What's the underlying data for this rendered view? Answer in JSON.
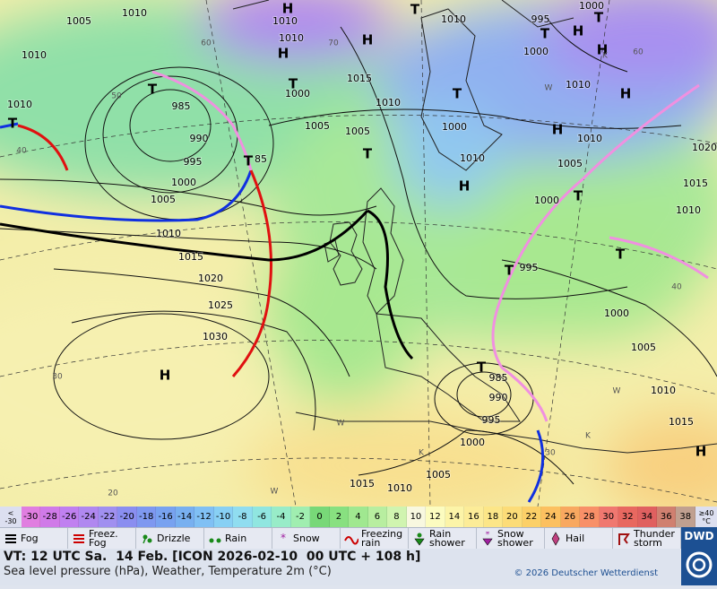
{
  "map": {
    "pressure_labels": [
      "1005",
      "1010",
      "1010",
      "1010",
      "T",
      "985",
      "990",
      "995",
      "1000",
      "1005",
      "T",
      "85",
      "1010",
      "1015",
      "1020",
      "1025",
      "1030",
      "H",
      "T",
      "1010",
      "H",
      "1010",
      "H",
      "H",
      "T",
      "T",
      "1000",
      "1015",
      "1005",
      "1005",
      "1010",
      "T",
      "1010",
      "995",
      "T",
      "1000",
      "1000",
      "T",
      "H",
      "H",
      "1010",
      "T",
      "1000",
      "1010",
      "H",
      "H",
      "1010",
      "1005",
      "T",
      "1000",
      "H",
      "1020",
      "1015",
      "1010",
      "T",
      "T",
      "995",
      "1000",
      "1005",
      "1010",
      "1015",
      "H",
      "T",
      "985",
      "990",
      "995",
      "1000",
      "1005",
      "1010",
      "1015"
    ],
    "grid_labels": [
      "60",
      "50",
      "40",
      "70",
      "60",
      "40",
      "30",
      "20",
      "30",
      "W",
      "W",
      "K",
      "K",
      "W",
      "W",
      "K"
    ]
  },
  "scale": {
    "low_label": [
      "<",
      "-30"
    ],
    "high_label": [
      "≥40",
      "°C"
    ],
    "labels": [
      "-30",
      "-28",
      "-26",
      "-24",
      "-22",
      "-20",
      "-18",
      "-16",
      "-14",
      "-12",
      "-10",
      "-8",
      "-6",
      "-4",
      "-2",
      "0",
      "2",
      "4",
      "6",
      "8",
      "10",
      "12",
      "14",
      "16",
      "18",
      "20",
      "22",
      "24",
      "26",
      "28",
      "30",
      "32",
      "34",
      "36",
      "38"
    ],
    "colors": [
      "#e07ee0",
      "#d07ae8",
      "#c080f0",
      "#b088f0",
      "#a090f0",
      "#8a8ef0",
      "#7e98f0",
      "#78a2f0",
      "#78b0f0",
      "#80c0f4",
      "#88d0f4",
      "#90ddf0",
      "#90e6e0",
      "#98ecc8",
      "#a0eeb0",
      "#78d878",
      "#88e080",
      "#a0e890",
      "#b8eea0",
      "#d0f4b0",
      "#f8f8e0",
      "#fcfcc0",
      "#fcf4a8",
      "#fcec98",
      "#fce688",
      "#fcdc78",
      "#fcd068",
      "#fcc060",
      "#f8a860",
      "#f89068",
      "#f07870",
      "#e86860",
      "#e06060",
      "#d08070",
      "#c0a090"
    ]
  },
  "legend": [
    [
      "Fog"
    ],
    [
      "Freez.",
      "Fog"
    ],
    [
      "Drizzle"
    ],
    [
      "Rain"
    ],
    [
      "Snow"
    ],
    [
      "Freezing",
      "rain"
    ],
    [
      "Rain",
      "shower"
    ],
    [
      "Snow",
      "shower"
    ],
    [
      "Hail"
    ],
    [
      "Thunder",
      "storm"
    ]
  ],
  "footer": {
    "valid_time": "VT: 12 UTC Sa.  14 Feb. [ICON 2026-02-10  00 UTC + 108 h]",
    "subtitle": "Sea level pressure (hPa), Weather, Temperature 2m (°C)",
    "copyright": "© 2026 Deutscher Wetterdienst",
    "logo": "DWD"
  }
}
